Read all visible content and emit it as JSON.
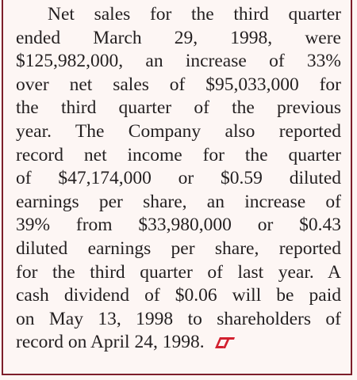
{
  "document": {
    "paragraph_lines": [
      "Net sales for the third quarter",
      "ended March 29, 1998, were",
      "$125,982,000, an increase of 33%",
      "over net sales of $95,033,000 for",
      "the third quarter of the previous",
      "year. The Company also reported",
      "record net income for the quarter",
      "of $47,174,000 or $0.59 diluted",
      "earnings per share, an increase of",
      "39% from $33,980,000 or $0.43",
      "diluted earnings per share, reported",
      "for the third quarter of last year. A",
      "cash dividend of $0.06 will be paid",
      "on May 13, 1998 to shareholders of",
      "record on April 24, 1998."
    ]
  }
}
